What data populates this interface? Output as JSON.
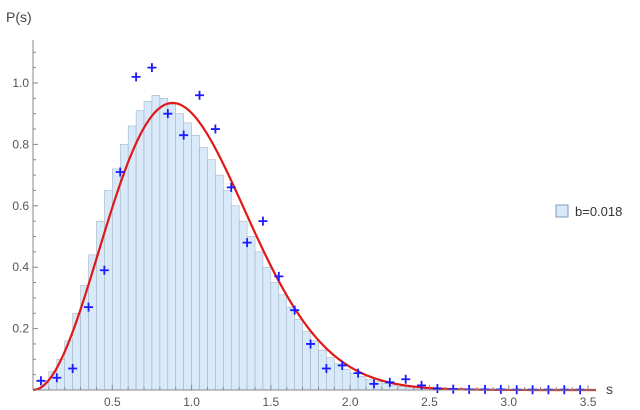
{
  "chart_data": {
    "type": "bar",
    "xlabel": "s",
    "ylabel": "P(s)",
    "xlim": [
      0,
      3.55
    ],
    "ylim": [
      0,
      1.14
    ],
    "grid": false,
    "legend_position": "right",
    "x_ticks": [
      0.5,
      1.0,
      1.5,
      2.0,
      2.5,
      3.0,
      3.5
    ],
    "y_ticks": [
      0.2,
      0.4,
      0.6,
      0.8,
      1.0
    ],
    "x_tick_labels": [
      "0.5",
      "1.0",
      "1.5",
      "2.0",
      "2.5",
      "3.0",
      "3.5"
    ],
    "y_tick_labels": [
      "0.2",
      "0.4",
      "0.6",
      "0.8",
      "1.0"
    ],
    "histogram": {
      "name": "b=0.018",
      "bin_width": 0.05,
      "bin_start": 0.0,
      "values": [
        0.005,
        0.03,
        0.06,
        0.1,
        0.16,
        0.25,
        0.34,
        0.44,
        0.55,
        0.65,
        0.72,
        0.8,
        0.86,
        0.91,
        0.94,
        0.96,
        0.95,
        0.93,
        0.9,
        0.87,
        0.83,
        0.79,
        0.75,
        0.7,
        0.65,
        0.6,
        0.55,
        0.5,
        0.45,
        0.4,
        0.35,
        0.31,
        0.27,
        0.23,
        0.19,
        0.16,
        0.13,
        0.105,
        0.085,
        0.068,
        0.055,
        0.044,
        0.034,
        0.027,
        0.021,
        0.016,
        0.012,
        0.009,
        0.007,
        0.005,
        0.004,
        0.003,
        0.002,
        0.0015,
        0.001,
        0.0008,
        0.0005,
        0.0004,
        0.0003,
        0.0002,
        0.0001,
        0.0001,
        0.0001,
        0.0001,
        0.0001,
        0.0001,
        0.0001,
        0.0001,
        0.0001,
        0.0001
      ],
      "fill_color": "#d8e9fa",
      "edge_color": "#9aaabb"
    },
    "markers": {
      "color": "#1a1aff",
      "x": [
        0.05,
        0.15,
        0.25,
        0.35,
        0.45,
        0.55,
        0.65,
        0.75,
        0.85,
        0.95,
        1.05,
        1.15,
        1.25,
        1.35,
        1.45,
        1.55,
        1.65,
        1.75,
        1.85,
        1.95,
        2.05,
        2.15,
        2.25,
        2.35,
        2.45,
        2.55,
        2.65,
        2.75,
        2.85,
        2.95,
        3.05,
        3.15,
        3.25,
        3.35,
        3.45
      ],
      "y": [
        0.03,
        0.04,
        0.07,
        0.27,
        0.39,
        0.71,
        1.02,
        1.05,
        0.9,
        0.83,
        0.96,
        0.85,
        0.66,
        0.48,
        0.55,
        0.37,
        0.26,
        0.15,
        0.07,
        0.08,
        0.055,
        0.02,
        0.025,
        0.035,
        0.015,
        0.005,
        0.003,
        0.002,
        0.002,
        0.002,
        0.001,
        0.001,
        0.001,
        0.001,
        0.001
      ]
    },
    "curve": {
      "color": "#e01818",
      "mode": 0.88,
      "peak": 0.935
    },
    "legend_label": "b=0.018"
  }
}
